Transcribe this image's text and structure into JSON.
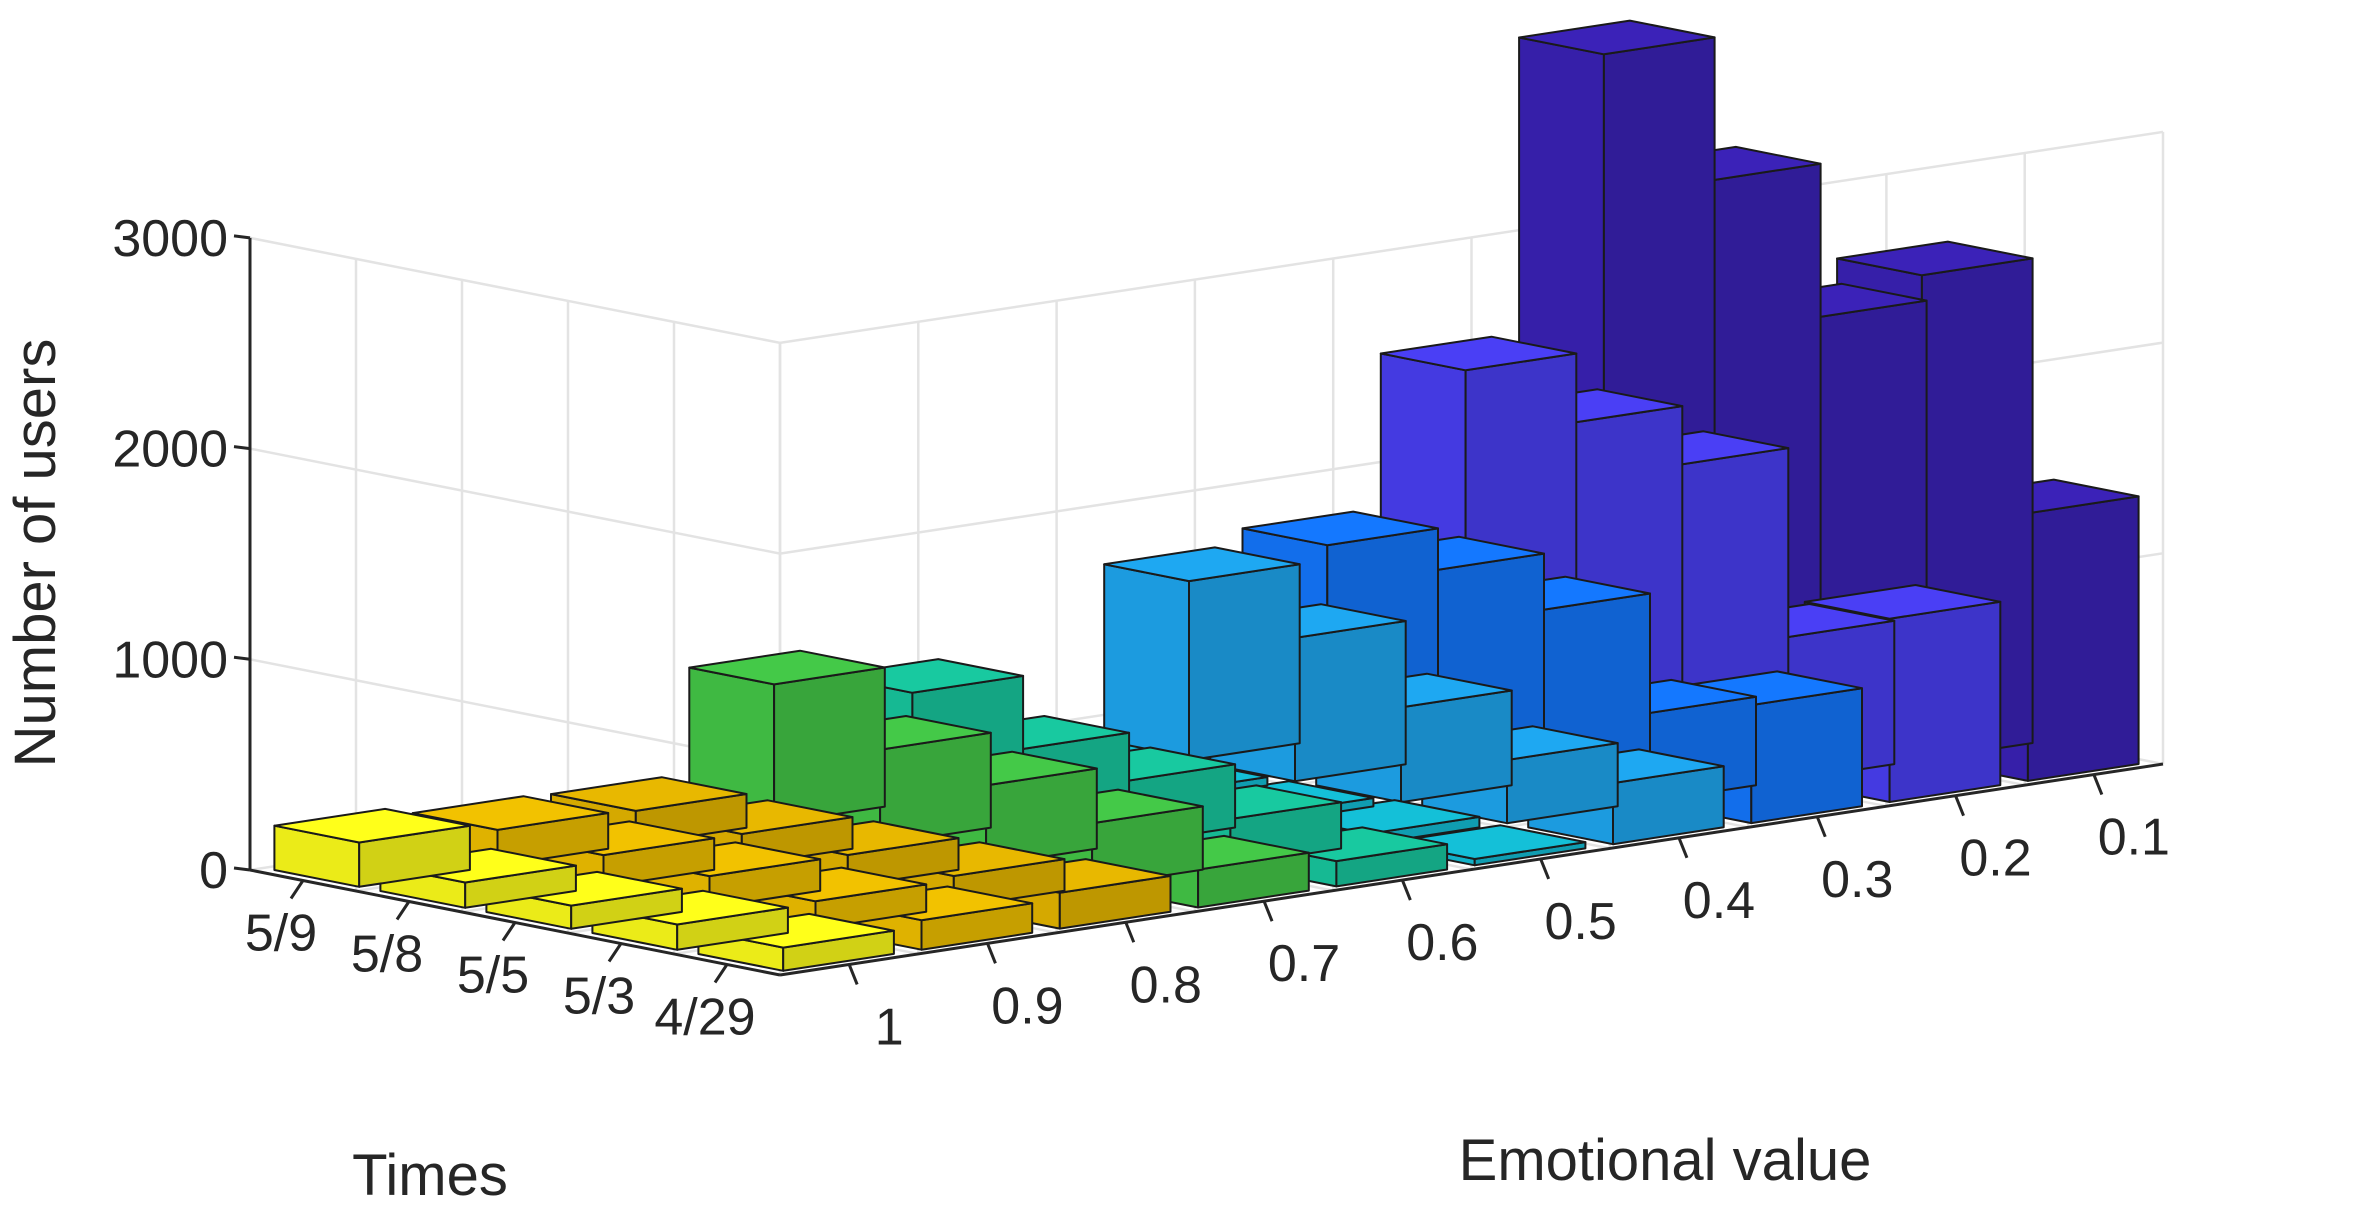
{
  "chart_data": {
    "type": "bar3d",
    "title": "",
    "zlabel": "Number of users",
    "xlabel": "Emotional value",
    "ylabel": "Times",
    "zlim": [
      0,
      3000
    ],
    "z_ticks": [
      "0",
      "1000",
      "2000",
      "3000"
    ],
    "emotional_values": [
      "1",
      "0.9",
      "0.8",
      "0.7",
      "0.6",
      "0.5",
      "0.4",
      "0.3",
      "0.2",
      "0.1"
    ],
    "times": [
      "5/9",
      "5/8",
      "5/5",
      "5/3",
      "4/29"
    ],
    "colors": [
      "#FFFF1A",
      "#F2C200",
      "#E8B800",
      "#44C948",
      "#18C9A0",
      "#14C0D8",
      "#1EA8F2",
      "#1478FF",
      "#4A3FF5",
      "#3B22B8"
    ],
    "values": [
      [
        210,
        120,
        110,
        120,
        110
      ],
      [
        170,
        150,
        150,
        130,
        140
      ],
      [
        160,
        150,
        150,
        150,
        170
      ],
      [
        660,
        450,
        380,
        300,
        180
      ],
      [
        520,
        350,
        300,
        220,
        120
      ],
      [
        60,
        40,
        40,
        50,
        30
      ],
      [
        850,
        680,
        450,
        300,
        290
      ],
      [
        920,
        900,
        810,
        420,
        560
      ],
      [
        1650,
        1500,
        1400,
        680,
        870
      ],
      [
        3050,
        2550,
        2000,
        2300,
        1270
      ]
    ]
  }
}
